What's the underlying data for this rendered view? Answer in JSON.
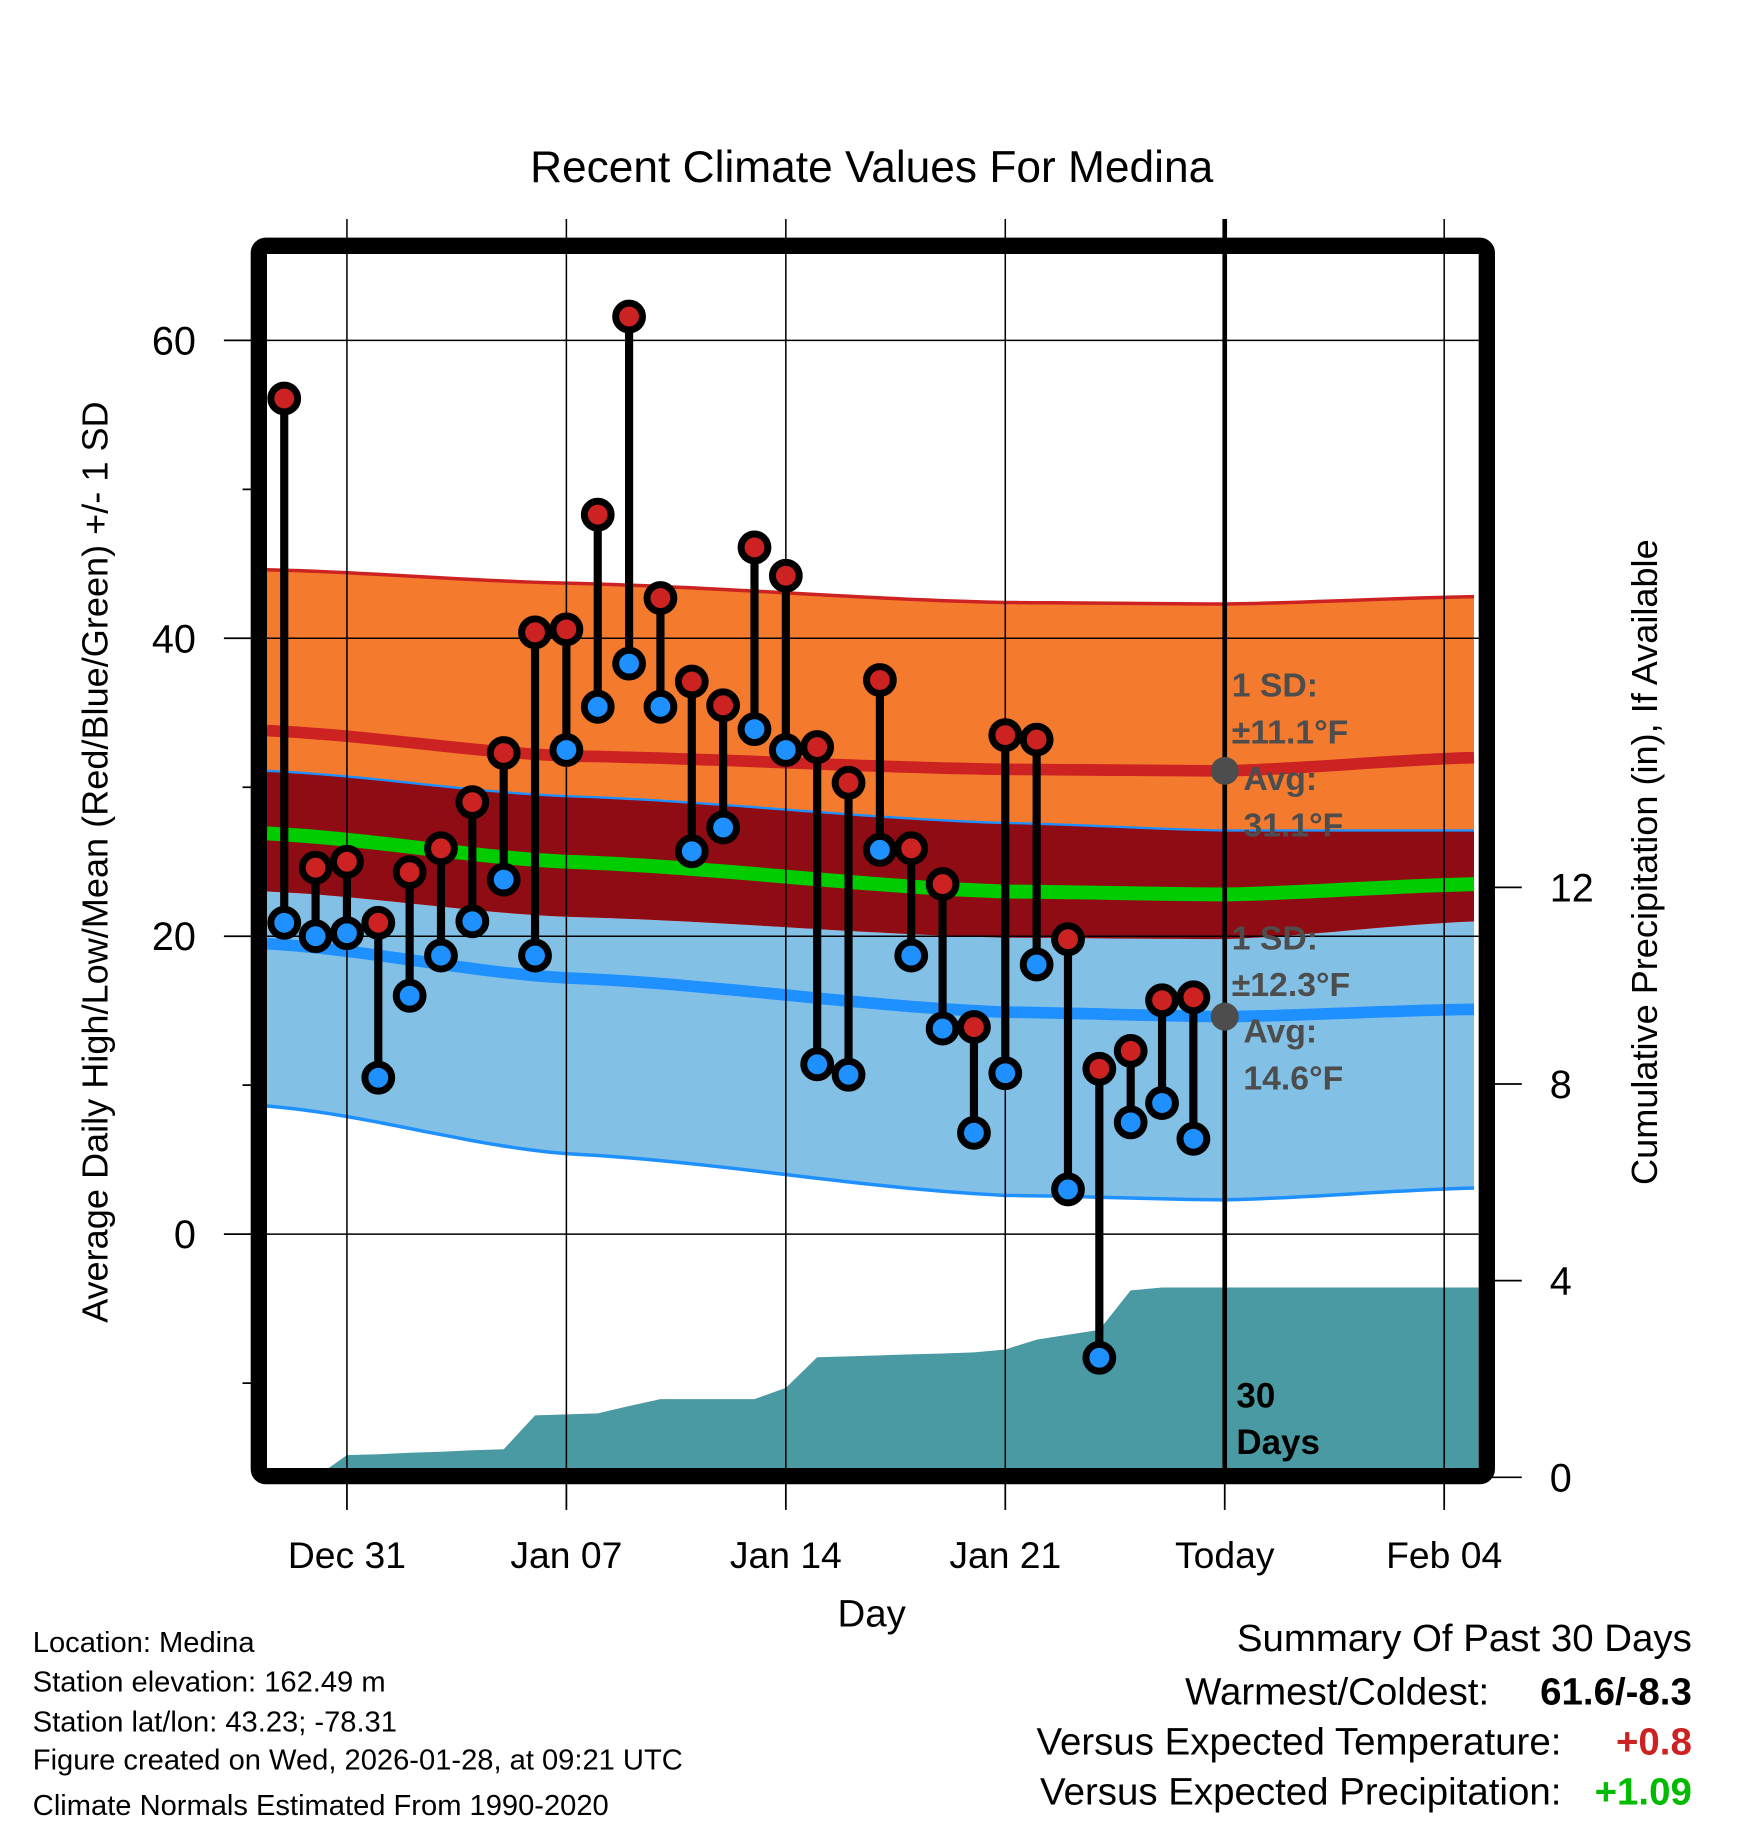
{
  "chart_data": {
    "type": "line",
    "title": "Recent Climate Values For Medina",
    "xlabel": "Day",
    "ylabel": "Average Daily High/Low/Mean (Red/Blue/Green) +/- 1 SD",
    "y2label": "Cumulative Precipitation (in), If Available",
    "ylim": [
      -15.7,
      65.8
    ],
    "yticks": [
      0,
      20,
      40,
      60
    ],
    "yminor_ticks": [
      -10,
      10,
      30,
      50
    ],
    "y2lim": [
      0,
      16.5
    ],
    "y2ticks": [
      0,
      4,
      8,
      12
    ],
    "grid": true,
    "x_tick_labels": [
      "Dec 31",
      "Jan 07",
      "Jan 14",
      "Jan 21",
      "Today",
      "Feb 04"
    ],
    "x_tick_day_index": [
      2,
      9,
      16,
      23,
      30,
      37
    ],
    "x_range_day_index": [
      -0.55,
      38.1
    ],
    "today_day_index": 30,
    "today_marker_label": [
      "30",
      "Days"
    ],
    "days": [
      "Dec 29",
      "Dec 30",
      "Dec 31",
      "Jan 01",
      "Jan 02",
      "Jan 03",
      "Jan 04",
      "Jan 05",
      "Jan 06",
      "Jan 07",
      "Jan 08",
      "Jan 09",
      "Jan 10",
      "Jan 11",
      "Jan 12",
      "Jan 13",
      "Jan 14",
      "Jan 15",
      "Jan 16",
      "Jan 17",
      "Jan 18",
      "Jan 19",
      "Jan 20",
      "Jan 21",
      "Jan 22",
      "Jan 23",
      "Jan 24",
      "Jan 25",
      "Jan 26",
      "Jan 27"
    ],
    "series": [
      {
        "name": "Daily High",
        "color": "#cc2222",
        "values": [
          56.1,
          24.6,
          25.0,
          20.9,
          24.3,
          25.9,
          29.0,
          32.3,
          40.4,
          40.6,
          48.3,
          61.6,
          42.7,
          37.1,
          35.5,
          46.1,
          44.2,
          32.7,
          30.3,
          37.2,
          25.9,
          23.5,
          13.9,
          33.5,
          33.2,
          19.8,
          11.1,
          12.3,
          15.7,
          15.9
        ]
      },
      {
        "name": "Daily Low",
        "color": "#1e90ff",
        "values": [
          20.9,
          20.0,
          20.2,
          10.5,
          16.0,
          18.7,
          21.0,
          23.8,
          18.7,
          32.5,
          35.4,
          38.3,
          35.4,
          25.7,
          27.3,
          33.9,
          32.5,
          11.4,
          10.7,
          25.8,
          18.7,
          13.8,
          6.8,
          10.8,
          18.1,
          3.0,
          -8.3,
          7.5,
          8.8,
          6.4
        ]
      },
      {
        "name": "Cumulative Precipitation",
        "color": "#4a9aa3",
        "axis": "right",
        "values": [
          0.0,
          0.0,
          0.45,
          0.47,
          0.5,
          0.52,
          0.55,
          0.57,
          1.26,
          1.28,
          1.3,
          1.45,
          1.59,
          1.59,
          1.59,
          1.59,
          1.82,
          2.44,
          2.46,
          2.48,
          2.5,
          2.52,
          2.54,
          2.6,
          2.8,
          2.9,
          3.0,
          3.8,
          3.86,
          3.86,
          3.86,
          3.86,
          3.86,
          3.86,
          3.86,
          3.86,
          3.86,
          3.86,
          3.86
        ]
      }
    ],
    "normals": {
      "day_index": [
        -0.55,
        9,
        23,
        30,
        38.1
      ],
      "high_plus_sd": [
        44.6,
        43.7,
        42.4,
        42.3,
        42.8
      ],
      "high_avg": [
        33.8,
        32.1,
        31.2,
        31.1,
        32.0
      ],
      "high_minus_sd": [
        31.1,
        29.4,
        27.6,
        27.1,
        27.1
      ],
      "mean": [
        26.9,
        25.0,
        23.0,
        22.8,
        23.5
      ],
      "low_plus_sd": [
        23.0,
        21.3,
        19.9,
        19.8,
        21.0
      ],
      "low_avg": [
        19.5,
        17.2,
        14.9,
        14.6,
        15.1
      ],
      "low_minus_sd": [
        8.6,
        5.4,
        2.6,
        2.3,
        3.1
      ]
    },
    "annotations": {
      "high": {
        "line1": "1 SD:",
        "line2": "±11.1°F",
        "line3": "Avg:",
        "line4": "31.1°F",
        "value": 31.1
      },
      "low": {
        "line1": "1 SD:",
        "line2": "±12.3°F",
        "line3": "Avg:",
        "line4": "14.6°F",
        "value": 14.6
      }
    },
    "colors": {
      "high_band": "#f47a2e",
      "high_line": "#cc2222",
      "mean_band": "#8f0c14",
      "mean_line": "#00cc00",
      "low_band": "#82c0e6",
      "low_line": "#1e90ff",
      "precip": "#4a9aa3",
      "annotation": "#4d4d4d"
    }
  },
  "info": {
    "location": "Location: Medina",
    "elevation": "Station elevation: 162.49 m",
    "latlon": "Station lat/lon: 43.23; -78.31",
    "created": "Figure created on Wed, 2026-01-28, at 09:21 UTC",
    "normals": "Climate Normals Estimated From 1990-2020"
  },
  "summary": {
    "title": "Summary Of Past 30 Days",
    "warmest_label": "Warmest/Coldest:",
    "warmest_value": "61.6/-8.3",
    "temp_label": "Versus Expected Temperature:",
    "temp_value": "+0.8",
    "temp_color": "#cc2222",
    "precip_label": "Versus Expected Precipitation:",
    "precip_value": "+1.09",
    "precip_color": "#00bb00"
  }
}
